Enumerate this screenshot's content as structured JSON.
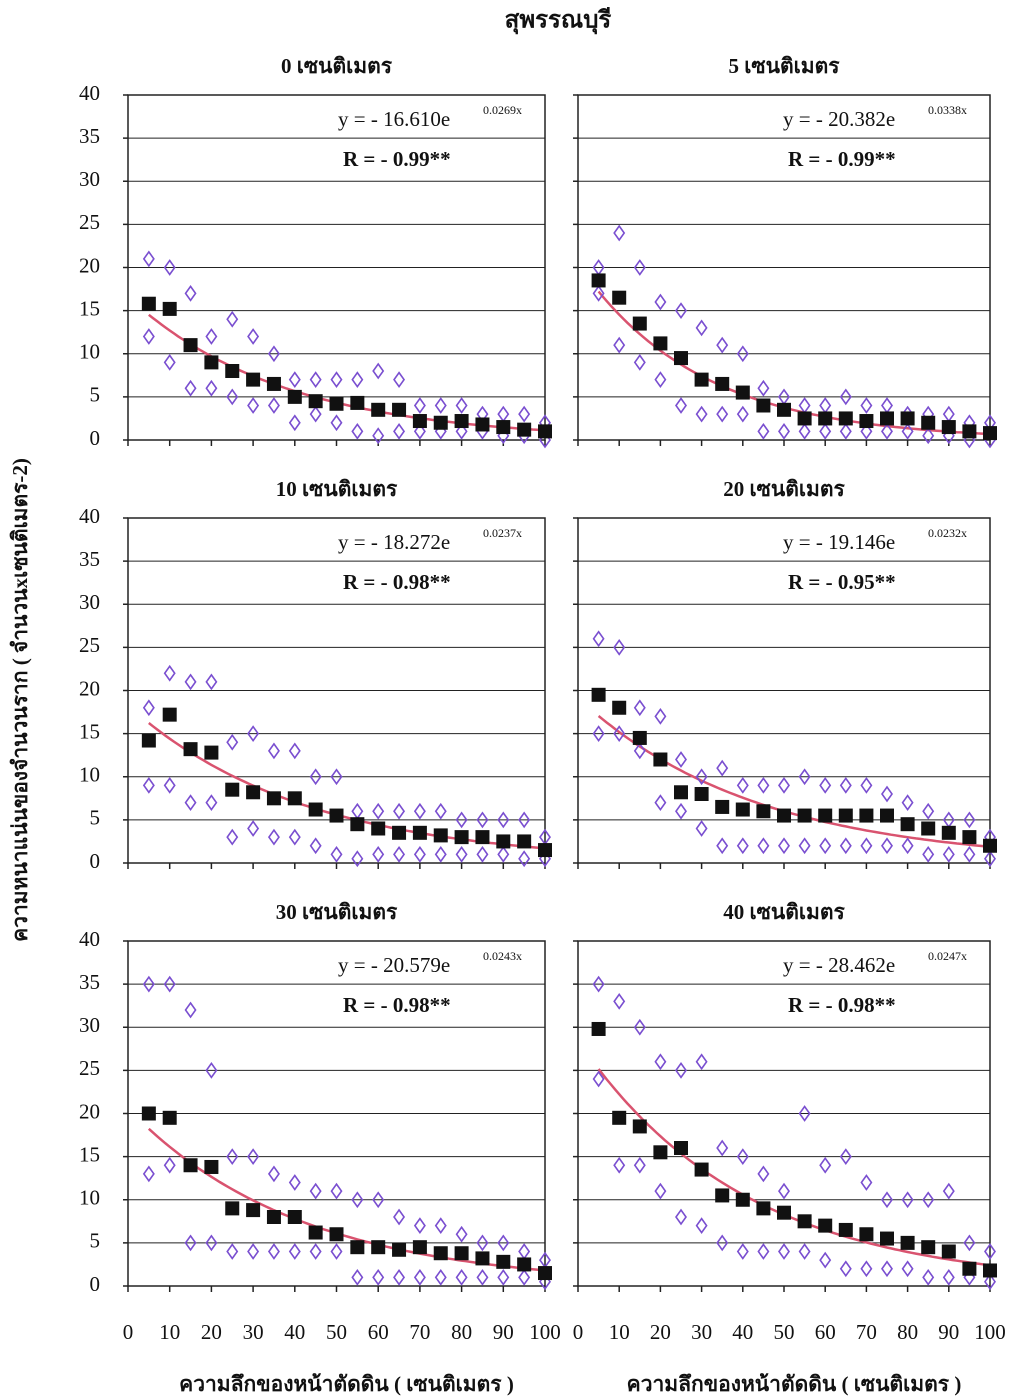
{
  "figure": {
    "title": "สุพรรณบุรี",
    "ylabel": "ความหนาแน่นของจำนวนราก ( จำนวนxเซนติเมตร-2)"
  },
  "chart_data": [
    {
      "type": "scatter",
      "title": "0 เซนติเมตร",
      "x": [
        5,
        10,
        15,
        20,
        25,
        30,
        35,
        40,
        45,
        50,
        55,
        60,
        65,
        70,
        75,
        80,
        85,
        90,
        95,
        100
      ],
      "series": [
        {
          "marker": "diamond",
          "color": "#7a4fd0",
          "values": [
            21,
            20,
            17,
            12,
            14,
            12,
            10,
            7,
            7,
            7,
            7,
            8,
            7,
            4,
            4,
            4,
            3,
            3,
            3,
            2
          ]
        },
        {
          "marker": "diamond",
          "color": "#7a4fd0",
          "values": [
            12,
            9,
            6,
            6,
            5,
            4,
            4,
            2,
            3,
            2,
            1,
            0.5,
            1,
            1,
            1,
            1,
            1,
            0.5,
            0.5,
            0
          ]
        },
        {
          "marker": "square",
          "color": "#111111",
          "values": [
            15.8,
            15.2,
            11,
            9,
            8,
            7,
            6.5,
            5,
            4.5,
            4.2,
            4.3,
            3.5,
            3.5,
            2.2,
            2,
            2.2,
            1.8,
            1.5,
            1.2,
            1.0
          ]
        }
      ],
      "equation": {
        "text": "y = - 16.610e",
        "coef": 16.61,
        "exponent": "0.0269x",
        "rate": 0.0269,
        "r": "R = - 0.99**",
        "color": "#d9536f"
      },
      "xlim": [
        0,
        100
      ],
      "xticks": [
        0,
        10,
        20,
        30,
        40,
        50,
        60,
        70,
        80,
        90,
        100
      ],
      "ylim": [
        0,
        40
      ],
      "yticks": [
        0,
        5,
        10,
        15,
        20,
        25,
        30,
        35,
        40
      ],
      "ytick_labels": true,
      "xtick_labels": false,
      "grid": true
    },
    {
      "type": "scatter",
      "title": "5 เซนติเมตร",
      "x": [
        5,
        10,
        15,
        20,
        25,
        30,
        35,
        40,
        45,
        50,
        55,
        60,
        65,
        70,
        75,
        80,
        85,
        90,
        95,
        100
      ],
      "series": [
        {
          "marker": "diamond",
          "color": "#7a4fd0",
          "values": [
            20,
            24,
            20,
            16,
            15,
            13,
            11,
            10,
            6,
            5,
            4,
            4,
            5,
            4,
            4,
            3,
            3,
            3,
            2,
            2
          ]
        },
        {
          "marker": "diamond",
          "color": "#7a4fd0",
          "values": [
            17,
            11,
            9,
            7,
            4,
            3,
            3,
            3,
            1,
            1,
            1,
            1,
            1,
            1,
            1,
            1,
            0.5,
            0.5,
            0,
            0
          ]
        },
        {
          "marker": "square",
          "color": "#111111",
          "values": [
            18.5,
            16.5,
            13.5,
            11.2,
            9.5,
            7,
            6.5,
            5.5,
            4,
            3.5,
            2.5,
            2.5,
            2.5,
            2.2,
            2.5,
            2.5,
            2,
            1.5,
            1,
            0.8
          ]
        }
      ],
      "equation": {
        "text": "y = - 20.382e",
        "coef": 20.382,
        "exponent": "0.0338x",
        "rate": 0.0338,
        "r": "R = - 0.99**",
        "color": "#d9536f"
      },
      "xlim": [
        0,
        100
      ],
      "xticks": [
        0,
        10,
        20,
        30,
        40,
        50,
        60,
        70,
        80,
        90,
        100
      ],
      "ylim": [
        0,
        40
      ],
      "yticks": [
        0,
        5,
        10,
        15,
        20,
        25,
        30,
        35,
        40
      ],
      "ytick_labels": false,
      "xtick_labels": false,
      "grid": true
    },
    {
      "type": "scatter",
      "title": "10 เซนติเมตร",
      "x": [
        5,
        10,
        15,
        20,
        25,
        30,
        35,
        40,
        45,
        50,
        55,
        60,
        65,
        70,
        75,
        80,
        85,
        90,
        95,
        100
      ],
      "series": [
        {
          "marker": "diamond",
          "color": "#7a4fd0",
          "values": [
            18,
            22,
            21,
            21,
            14,
            15,
            13,
            13,
            10,
            10,
            6,
            6,
            6,
            6,
            6,
            5,
            5,
            5,
            5,
            3
          ]
        },
        {
          "marker": "diamond",
          "color": "#7a4fd0",
          "values": [
            9,
            9,
            7,
            7,
            3,
            4,
            3,
            3,
            2,
            1,
            0.5,
            1,
            1,
            1,
            1,
            1,
            1,
            1,
            0.5,
            0.5
          ]
        },
        {
          "marker": "square",
          "color": "#111111",
          "values": [
            14.2,
            17.2,
            13.2,
            12.8,
            8.5,
            8.2,
            7.5,
            7.5,
            6.2,
            5.5,
            4.5,
            4,
            3.5,
            3.5,
            3.2,
            3,
            3,
            2.5,
            2.5,
            1.5
          ]
        }
      ],
      "equation": {
        "text": "y = - 18.272e",
        "coef": 18.272,
        "exponent": "0.0237x",
        "rate": 0.0237,
        "r": "R = - 0.98**",
        "color": "#d9536f"
      },
      "xlim": [
        0,
        100
      ],
      "xticks": [
        0,
        10,
        20,
        30,
        40,
        50,
        60,
        70,
        80,
        90,
        100
      ],
      "ylim": [
        0,
        40
      ],
      "yticks": [
        0,
        5,
        10,
        15,
        20,
        25,
        30,
        35,
        40
      ],
      "ytick_labels": true,
      "xtick_labels": false,
      "grid": true
    },
    {
      "type": "scatter",
      "title": "20 เซนติเมตร",
      "x": [
        5,
        10,
        15,
        20,
        25,
        30,
        35,
        40,
        45,
        50,
        55,
        60,
        65,
        70,
        75,
        80,
        85,
        90,
        95,
        100
      ],
      "series": [
        {
          "marker": "diamond",
          "color": "#7a4fd0",
          "values": [
            26,
            25,
            18,
            17,
            12,
            10,
            11,
            9,
            9,
            9,
            10,
            9,
            9,
            9,
            8,
            7,
            6,
            5,
            5,
            3
          ]
        },
        {
          "marker": "diamond",
          "color": "#7a4fd0",
          "values": [
            15,
            15,
            13,
            7,
            6,
            4,
            2,
            2,
            2,
            2,
            2,
            2,
            2,
            2,
            2,
            2,
            1,
            1,
            1,
            0.5
          ]
        },
        {
          "marker": "square",
          "color": "#111111",
          "values": [
            19.5,
            18,
            14.5,
            12,
            8.2,
            8,
            6.5,
            6.2,
            6,
            5.5,
            5.5,
            5.5,
            5.5,
            5.5,
            5.5,
            4.5,
            4,
            3.5,
            3,
            2
          ]
        }
      ],
      "equation": {
        "text": "y = - 19.146e",
        "coef": 19.146,
        "exponent": "0.0232x",
        "rate": 0.0232,
        "r": "R = - 0.95**",
        "color": "#d9536f"
      },
      "xlim": [
        0,
        100
      ],
      "xticks": [
        0,
        10,
        20,
        30,
        40,
        50,
        60,
        70,
        80,
        90,
        100
      ],
      "ylim": [
        0,
        40
      ],
      "yticks": [
        0,
        5,
        10,
        15,
        20,
        25,
        30,
        35,
        40
      ],
      "ytick_labels": false,
      "xtick_labels": false,
      "grid": true
    },
    {
      "type": "scatter",
      "title": "30 เซนติเมตร",
      "xlabel": "ความลึกของหน้าตัดดิน ( เซนติเมตร )",
      "x": [
        5,
        10,
        15,
        20,
        25,
        30,
        35,
        40,
        45,
        50,
        55,
        60,
        65,
        70,
        75,
        80,
        85,
        90,
        95,
        100
      ],
      "series": [
        {
          "marker": "diamond",
          "color": "#7a4fd0",
          "values": [
            35,
            35,
            32,
            25,
            15,
            15,
            13,
            12,
            11,
            11,
            10,
            10,
            8,
            7,
            7,
            6,
            5,
            5,
            4,
            3
          ]
        },
        {
          "marker": "diamond",
          "color": "#7a4fd0",
          "values": [
            13,
            14,
            5,
            5,
            4,
            4,
            4,
            4,
            4,
            4,
            1,
            1,
            1,
            1,
            1,
            1,
            1,
            1,
            1,
            0.5
          ]
        },
        {
          "marker": "square",
          "color": "#111111",
          "values": [
            20,
            19.5,
            14,
            13.8,
            9,
            8.8,
            8,
            8,
            6.2,
            6,
            4.5,
            4.5,
            4.2,
            4.5,
            3.8,
            3.8,
            3.2,
            2.8,
            2.5,
            1.5
          ]
        }
      ],
      "equation": {
        "text": "y = - 20.579e",
        "coef": 20.579,
        "exponent": "0.0243x",
        "rate": 0.0243,
        "r": "R = - 0.98**",
        "color": "#d9536f"
      },
      "xlim": [
        0,
        100
      ],
      "xticks": [
        0,
        10,
        20,
        30,
        40,
        50,
        60,
        70,
        80,
        90,
        100
      ],
      "ylim": [
        0,
        40
      ],
      "yticks": [
        0,
        5,
        10,
        15,
        20,
        25,
        30,
        35,
        40
      ],
      "ytick_labels": true,
      "xtick_labels": true,
      "grid": true
    },
    {
      "type": "scatter",
      "title": "40 เซนติเมตร",
      "xlabel": "ความลึกของหน้าตัดดิน ( เซนติเมตร )",
      "x": [
        5,
        10,
        15,
        20,
        25,
        30,
        35,
        40,
        45,
        50,
        55,
        60,
        65,
        70,
        75,
        80,
        85,
        90,
        95,
        100
      ],
      "series": [
        {
          "marker": "diamond",
          "color": "#7a4fd0",
          "values": [
            35,
            33,
            30,
            26,
            25,
            26,
            16,
            15,
            13,
            11,
            20,
            14,
            15,
            12,
            10,
            10,
            10,
            11,
            5,
            4
          ]
        },
        {
          "marker": "diamond",
          "color": "#7a4fd0",
          "values": [
            24,
            14,
            14,
            11,
            8,
            7,
            5,
            4,
            4,
            4,
            4,
            3,
            2,
            2,
            2,
            2,
            1,
            1,
            1,
            0.5
          ]
        },
        {
          "marker": "square",
          "color": "#111111",
          "values": [
            29.8,
            19.5,
            18.5,
            15.5,
            16,
            13.5,
            10.5,
            10,
            9,
            8.5,
            7.5,
            7,
            6.5,
            6,
            5.5,
            5,
            4.5,
            4,
            2,
            1.8
          ]
        }
      ],
      "equation": {
        "text": "y = - 28.462e",
        "coef": 28.462,
        "exponent": "0.0247x",
        "rate": 0.0247,
        "r": "R = - 0.98**",
        "color": "#d9536f"
      },
      "xlim": [
        0,
        100
      ],
      "xticks": [
        0,
        10,
        20,
        30,
        40,
        50,
        60,
        70,
        80,
        90,
        100
      ],
      "ylim": [
        0,
        40
      ],
      "yticks": [
        0,
        5,
        10,
        15,
        20,
        25,
        30,
        35,
        40
      ],
      "ytick_labels": false,
      "xtick_labels": true,
      "grid": true
    }
  ]
}
